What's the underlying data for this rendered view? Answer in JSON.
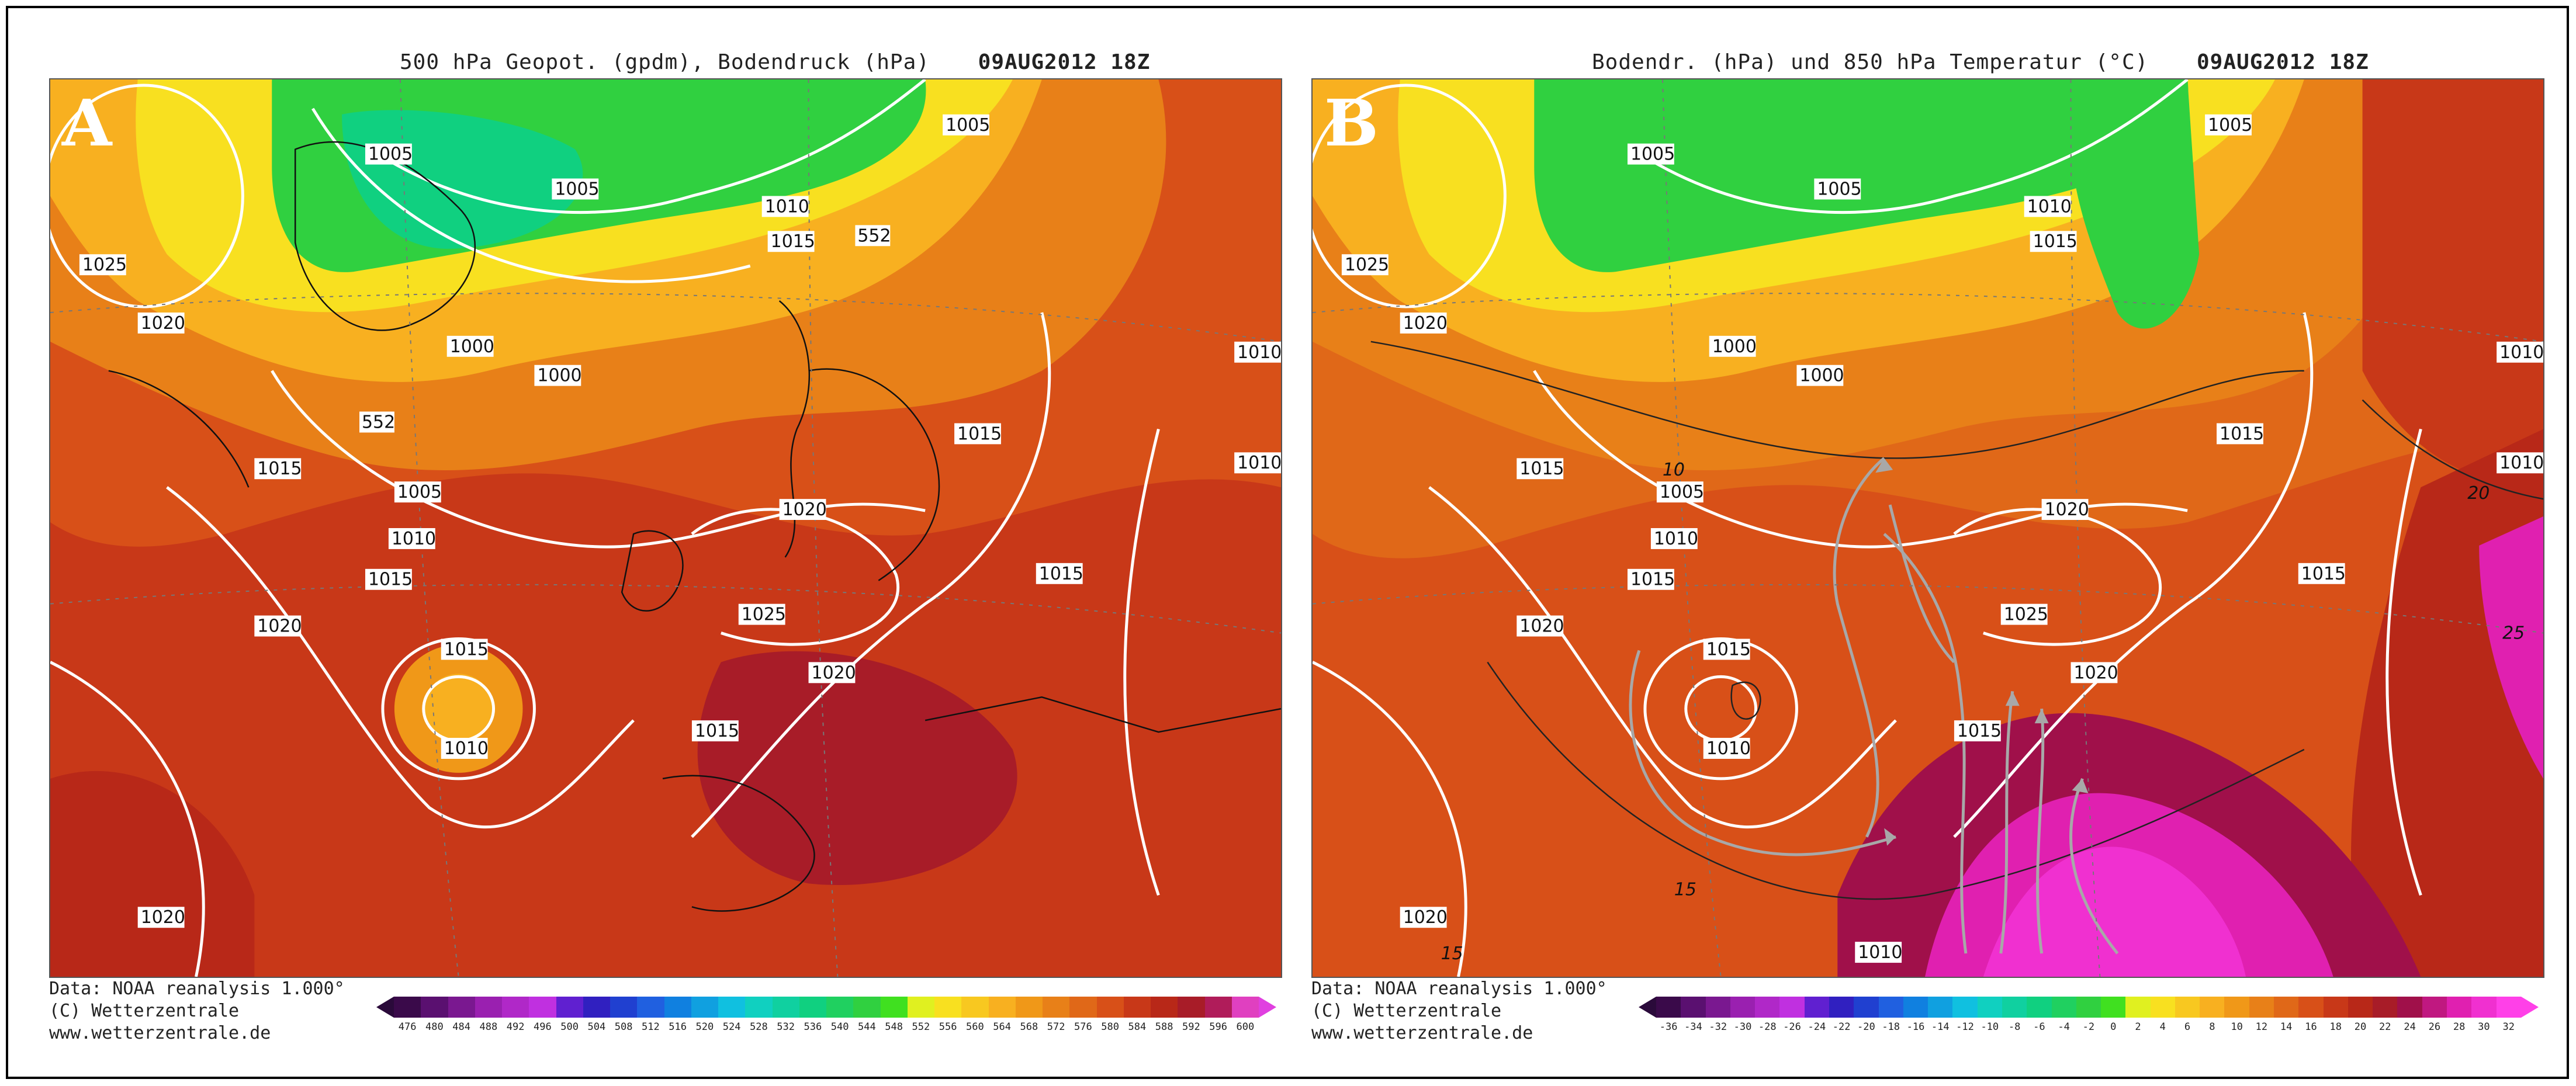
{
  "panels": [
    {
      "letter": "A",
      "title": "500 hPa Geopot. (gpdm), Bodendruck (hPa)",
      "date": "09AUG2012 18Z",
      "credits": [
        "Data: NOAA reanalysis 1.000°",
        "(C) Wetterzentrale",
        "www.wetterzentrale.de"
      ],
      "colorbar_labels": [
        "476",
        "480",
        "484",
        "488",
        "492",
        "496",
        "500",
        "504",
        "508",
        "512",
        "516",
        "520",
        "524",
        "528",
        "532",
        "536",
        "540",
        "544",
        "548",
        "552",
        "556",
        "560",
        "564",
        "568",
        "572",
        "576",
        "580",
        "584",
        "588",
        "592",
        "596",
        "600"
      ],
      "colorbar_colors": [
        "#3a0a4a",
        "#5a1070",
        "#7a1890",
        "#9a20b0",
        "#b028c8",
        "#c030e0",
        "#6020d0",
        "#3020c0",
        "#2040d0",
        "#2060e0",
        "#1080e0",
        "#10a0e0",
        "#10c0e0",
        "#10d0c0",
        "#10d0a0",
        "#10d080",
        "#20d060",
        "#30d040",
        "#40e020",
        "#e0f020",
        "#f8e020",
        "#f8c820",
        "#f8b020",
        "#f09818",
        "#e88018",
        "#e06818",
        "#d85018",
        "#c83818",
        "#b82818",
        "#a81c28",
        "#b01c5a",
        "#e040c0"
      ],
      "isobar_labels": [
        "1005",
        "1005",
        "1005",
        "1010",
        "1015",
        "1025",
        "1020",
        "1000",
        "1000",
        "552",
        "552",
        "1015",
        "1005",
        "1010",
        "1015",
        "1020",
        "1015",
        "1020",
        "1025",
        "1015",
        "1010",
        "1020",
        "1015",
        "1010",
        "1010",
        "1015",
        "1020"
      ]
    },
    {
      "letter": "B",
      "title": "Bodendr. (hPa) und 850 hPa Temperatur (°C)",
      "date": "09AUG2012 18Z",
      "credits": [
        "Data: NOAA reanalysis 1.000°",
        "(C) Wetterzentrale",
        "www.wetterzentrale.de"
      ],
      "colorbar_labels": [
        "-36",
        "-34",
        "-32",
        "-30",
        "-28",
        "-26",
        "-24",
        "-22",
        "-20",
        "-18",
        "-16",
        "-14",
        "-12",
        "-10",
        "-8",
        "-6",
        "-4",
        "-2",
        "0",
        "2",
        "4",
        "6",
        "8",
        "10",
        "12",
        "14",
        "16",
        "18",
        "20",
        "22",
        "24",
        "26",
        "28",
        "30",
        "32"
      ],
      "colorbar_colors": [
        "#3a0a4a",
        "#5a1070",
        "#7a1890",
        "#9a20b0",
        "#b028c8",
        "#c030e0",
        "#6020d0",
        "#3020c0",
        "#2040d0",
        "#2060e0",
        "#1080e0",
        "#10a0e0",
        "#10c0e0",
        "#10d0c0",
        "#10d0a0",
        "#10d080",
        "#20d060",
        "#30d040",
        "#40e020",
        "#e0f020",
        "#f8e020",
        "#f8c820",
        "#f8b020",
        "#f09818",
        "#e88018",
        "#e06818",
        "#d85018",
        "#c83818",
        "#b82818",
        "#a81c28",
        "#a0104a",
        "#c01880",
        "#e020b0",
        "#f030d0",
        "#ff40e8"
      ],
      "isobar_labels": [
        "1005",
        "1005",
        "1005",
        "1010",
        "1015",
        "1025",
        "1020",
        "1000",
        "1000",
        "1015",
        "10",
        "1005",
        "1010",
        "1015",
        "1020",
        "1015",
        "1020",
        "1025",
        "1015",
        "1010",
        "1020",
        "1015",
        "1010",
        "1010",
        "1015",
        "1020",
        "15",
        "15",
        "20",
        "25",
        "1010"
      ]
    }
  ]
}
